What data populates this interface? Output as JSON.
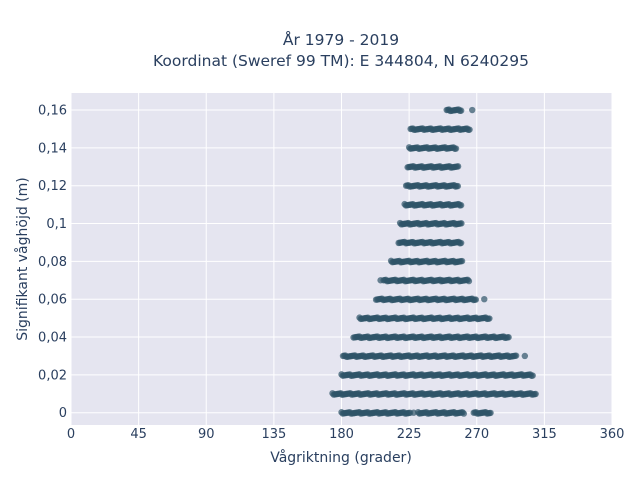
{
  "chart_data": {
    "type": "scatter",
    "title_line1": "År 1979 - 2019",
    "title_line2": "Koordinat (Sweref 99 TM): E 344804, N 6240295",
    "xlabel": "Vågriktning (grader)",
    "ylabel": "Signifikant våghöjd (m)",
    "xlim": [
      0,
      360
    ],
    "ylim": [
      -0.0065,
      0.169
    ],
    "x_ticks": [
      0,
      45,
      90,
      135,
      180,
      225,
      270,
      315,
      360
    ],
    "x_tick_labels": [
      "0",
      "45",
      "90",
      "135",
      "180",
      "225",
      "270",
      "315",
      "360"
    ],
    "y_ticks": [
      0,
      0.02,
      0.04,
      0.06,
      0.08,
      0.1,
      0.12,
      0.14,
      0.16
    ],
    "y_tick_labels": [
      "0",
      "0,02",
      "0,04",
      "0,06",
      "0,08",
      "0,1",
      "0,12",
      "0,14",
      "0,16"
    ],
    "grid": true,
    "marker_color": "#2f5468",
    "background_color": "#e5e5f0",
    "points_by_level": [
      {
        "y": 0.0,
        "x_ranges": [
          [
            180,
            226
          ],
          [
            231,
            262
          ],
          [
            268,
            280
          ]
        ],
        "x_isolated": [
          228
        ]
      },
      {
        "y": 0.01,
        "x_ranges": [
          [
            174,
            310
          ]
        ],
        "x_isolated": []
      },
      {
        "y": 0.02,
        "x_ranges": [
          [
            180,
            308
          ]
        ],
        "x_isolated": []
      },
      {
        "y": 0.03,
        "x_ranges": [
          [
            181,
            297
          ]
        ],
        "x_isolated": [
          302
        ]
      },
      {
        "y": 0.04,
        "x_ranges": [
          [
            188,
            292
          ]
        ],
        "x_isolated": []
      },
      {
        "y": 0.05,
        "x_ranges": [
          [
            192,
            279
          ]
        ],
        "x_isolated": []
      },
      {
        "y": 0.06,
        "x_ranges": [
          [
            203,
            270
          ]
        ],
        "x_isolated": [
          275
        ]
      },
      {
        "y": 0.07,
        "x_ranges": [
          [
            208,
            265
          ]
        ],
        "x_isolated": [
          206,
          247
        ]
      },
      {
        "y": 0.08,
        "x_ranges": [
          [
            213,
            261
          ]
        ],
        "x_isolated": []
      },
      {
        "y": 0.09,
        "x_ranges": [
          [
            218,
            260
          ]
        ],
        "x_isolated": []
      },
      {
        "y": 0.1,
        "x_ranges": [
          [
            219,
            260
          ]
        ],
        "x_isolated": []
      },
      {
        "y": 0.11,
        "x_ranges": [
          [
            222,
            260
          ]
        ],
        "x_isolated": []
      },
      {
        "y": 0.12,
        "x_ranges": [
          [
            223,
            258
          ]
        ],
        "x_isolated": []
      },
      {
        "y": 0.13,
        "x_ranges": [
          [
            224,
            258
          ]
        ],
        "x_isolated": []
      },
      {
        "y": 0.14,
        "x_ranges": [
          [
            225,
            257
          ]
        ],
        "x_isolated": []
      },
      {
        "y": 0.15,
        "x_ranges": [
          [
            226,
            266
          ]
        ],
        "x_isolated": []
      },
      {
        "y": 0.16,
        "x_ranges": [
          [
            250,
            260
          ]
        ],
        "x_isolated": [
          267
        ]
      }
    ]
  }
}
